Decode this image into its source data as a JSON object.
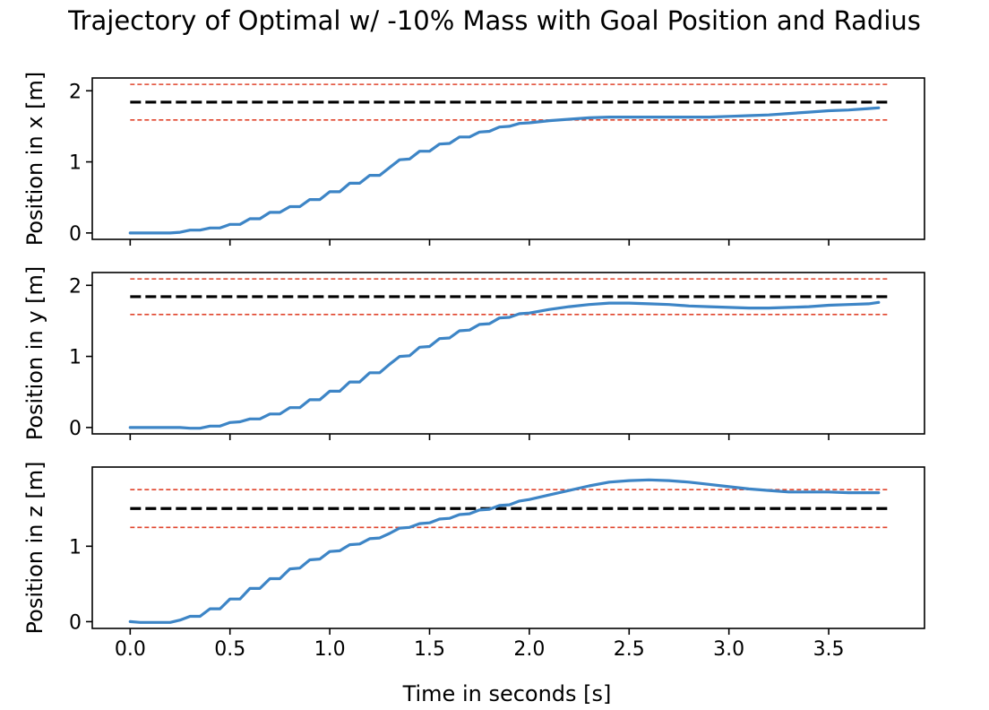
{
  "chart_data": {
    "type": "line",
    "title": "Trajectory of Optimal w/ -10% Mass with Goal Position and Radius",
    "xlabel": "Time in seconds [s]",
    "xlim": [
      -0.19,
      3.98
    ],
    "xticks": [
      0.0,
      0.5,
      1.0,
      1.5,
      2.0,
      2.5,
      3.0,
      3.5
    ],
    "xtick_labels": [
      "0.0",
      "0.5",
      "1.0",
      "1.5",
      "2.0",
      "2.5",
      "3.0",
      "3.5"
    ],
    "grid": false,
    "legend": "none",
    "colors": {
      "trajectory": "#3d85c6",
      "goal": "#000000",
      "radius": "#e0442c"
    },
    "subplots": [
      {
        "ylabel": "Position in x [m]",
        "ylim": [
          -0.09,
          2.18
        ],
        "yticks": [
          0,
          1,
          2
        ],
        "ytick_labels": [
          "0",
          "1",
          "2"
        ],
        "goal": 1.84,
        "radius_upper": 2.09,
        "radius_lower": 1.59,
        "hline_x_range": [
          0.0,
          3.8
        ],
        "x": [
          0.0,
          0.05,
          0.1,
          0.15,
          0.2,
          0.25,
          0.3,
          0.35,
          0.4,
          0.45,
          0.5,
          0.55,
          0.6,
          0.65,
          0.7,
          0.75,
          0.8,
          0.85,
          0.9,
          0.95,
          1.0,
          1.05,
          1.1,
          1.15,
          1.2,
          1.25,
          1.3,
          1.35,
          1.4,
          1.45,
          1.5,
          1.55,
          1.6,
          1.65,
          1.7,
          1.75,
          1.8,
          1.85,
          1.9,
          1.95,
          2.0,
          2.1,
          2.2,
          2.3,
          2.4,
          2.5,
          2.6,
          2.7,
          2.8,
          2.9,
          3.0,
          3.1,
          3.2,
          3.3,
          3.4,
          3.5,
          3.6,
          3.7,
          3.75
        ],
        "y": [
          0.0,
          0.0,
          0.0,
          0.0,
          0.0,
          0.01,
          0.04,
          0.04,
          0.07,
          0.07,
          0.12,
          0.12,
          0.2,
          0.2,
          0.29,
          0.29,
          0.37,
          0.37,
          0.47,
          0.47,
          0.58,
          0.58,
          0.7,
          0.7,
          0.81,
          0.81,
          0.92,
          1.03,
          1.04,
          1.15,
          1.15,
          1.25,
          1.26,
          1.35,
          1.35,
          1.42,
          1.43,
          1.49,
          1.5,
          1.54,
          1.55,
          1.58,
          1.6,
          1.62,
          1.63,
          1.63,
          1.63,
          1.63,
          1.63,
          1.63,
          1.64,
          1.65,
          1.66,
          1.68,
          1.7,
          1.72,
          1.73,
          1.75,
          1.76
        ]
      },
      {
        "ylabel": "Position in y [m]",
        "ylim": [
          -0.09,
          2.18
        ],
        "yticks": [
          0,
          1,
          2
        ],
        "ytick_labels": [
          "0",
          "1",
          "2"
        ],
        "goal": 1.84,
        "radius_upper": 2.09,
        "radius_lower": 1.59,
        "hline_x_range": [
          0.0,
          3.8
        ],
        "x": [
          0.0,
          0.05,
          0.1,
          0.15,
          0.2,
          0.25,
          0.3,
          0.35,
          0.4,
          0.45,
          0.5,
          0.55,
          0.6,
          0.65,
          0.7,
          0.75,
          0.8,
          0.85,
          0.9,
          0.95,
          1.0,
          1.05,
          1.1,
          1.15,
          1.2,
          1.25,
          1.3,
          1.35,
          1.4,
          1.45,
          1.5,
          1.55,
          1.6,
          1.65,
          1.7,
          1.75,
          1.8,
          1.85,
          1.9,
          1.95,
          2.0,
          2.1,
          2.2,
          2.3,
          2.4,
          2.5,
          2.6,
          2.7,
          2.8,
          2.9,
          3.0,
          3.1,
          3.2,
          3.3,
          3.4,
          3.5,
          3.6,
          3.7,
          3.75
        ],
        "y": [
          0.0,
          0.0,
          0.0,
          0.0,
          0.0,
          0.0,
          -0.01,
          -0.01,
          0.02,
          0.02,
          0.07,
          0.08,
          0.12,
          0.12,
          0.19,
          0.19,
          0.28,
          0.28,
          0.39,
          0.39,
          0.51,
          0.51,
          0.64,
          0.64,
          0.77,
          0.77,
          0.89,
          1.0,
          1.01,
          1.13,
          1.14,
          1.25,
          1.26,
          1.36,
          1.37,
          1.45,
          1.46,
          1.54,
          1.55,
          1.6,
          1.61,
          1.66,
          1.7,
          1.73,
          1.75,
          1.75,
          1.74,
          1.73,
          1.71,
          1.7,
          1.69,
          1.68,
          1.68,
          1.69,
          1.7,
          1.72,
          1.73,
          1.74,
          1.76
        ]
      },
      {
        "ylabel": "Position in z [m]",
        "ylim": [
          -0.09,
          2.05
        ],
        "yticks": [
          0,
          1
        ],
        "ytick_labels": [
          "0",
          "1"
        ],
        "goal": 1.5,
        "radius_upper": 1.75,
        "radius_lower": 1.25,
        "hline_x_range": [
          0.0,
          3.8
        ],
        "x": [
          0.0,
          0.05,
          0.1,
          0.15,
          0.2,
          0.25,
          0.3,
          0.35,
          0.4,
          0.45,
          0.5,
          0.55,
          0.6,
          0.65,
          0.7,
          0.75,
          0.8,
          0.85,
          0.9,
          0.95,
          1.0,
          1.05,
          1.1,
          1.15,
          1.2,
          1.25,
          1.3,
          1.35,
          1.4,
          1.45,
          1.5,
          1.55,
          1.6,
          1.65,
          1.7,
          1.75,
          1.8,
          1.85,
          1.9,
          1.95,
          2.0,
          2.1,
          2.2,
          2.3,
          2.4,
          2.5,
          2.6,
          2.7,
          2.8,
          2.9,
          3.0,
          3.1,
          3.2,
          3.3,
          3.4,
          3.5,
          3.6,
          3.7,
          3.75
        ],
        "y": [
          0.0,
          -0.01,
          -0.01,
          -0.01,
          -0.01,
          0.02,
          0.07,
          0.07,
          0.17,
          0.17,
          0.3,
          0.3,
          0.44,
          0.44,
          0.57,
          0.57,
          0.7,
          0.71,
          0.82,
          0.83,
          0.93,
          0.94,
          1.02,
          1.03,
          1.1,
          1.11,
          1.17,
          1.24,
          1.25,
          1.3,
          1.31,
          1.36,
          1.37,
          1.42,
          1.43,
          1.48,
          1.49,
          1.54,
          1.55,
          1.6,
          1.62,
          1.68,
          1.74,
          1.8,
          1.85,
          1.87,
          1.88,
          1.87,
          1.85,
          1.82,
          1.79,
          1.76,
          1.74,
          1.72,
          1.72,
          1.72,
          1.71,
          1.71,
          1.71
        ]
      }
    ]
  }
}
